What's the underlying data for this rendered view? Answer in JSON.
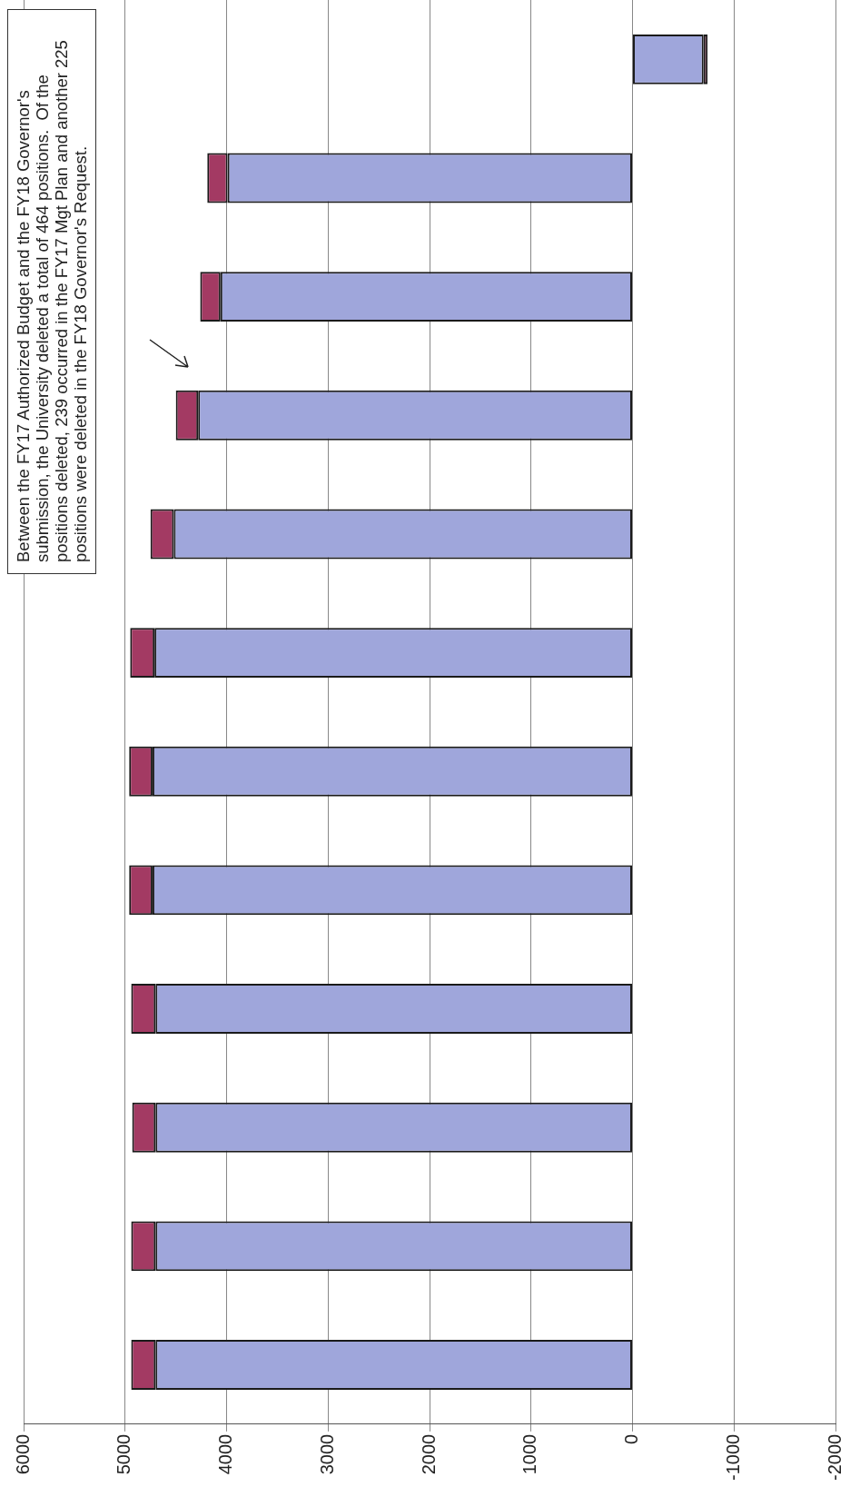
{
  "chart_data": {
    "type": "bar",
    "orientation": "horizontal",
    "stacked": true,
    "categories": [
      null,
      null,
      null,
      null,
      null,
      null,
      null,
      null,
      null,
      null,
      null,
      null
    ],
    "series": [
      {
        "color": "#9fa6db",
        "values": [
          -700,
          3990,
          4060,
          4280,
          4520,
          4710,
          4730,
          4730,
          4700,
          4700,
          4700,
          4700
        ]
      },
      {
        "color": "#a33a63",
        "values": [
          -40,
          200,
          200,
          220,
          230,
          240,
          230,
          230,
          240,
          230,
          240,
          240
        ]
      }
    ],
    "xlim": [
      6000,
      -2000
    ],
    "xticks": [
      6000,
      5000,
      4000,
      3000,
      2000,
      1000,
      0,
      -1000,
      -2000
    ],
    "grid": "x",
    "legend": false,
    "tick_labels": "x",
    "annotations": [
      "Between the FY17 Authorized Budget and the FY18 Governor's submission, the University deleted a total of 464 positions.  Of the positions deleted, 239 occurred in the FY17 Mgt Plan and another 225 positions were deleted in the FY18 Governor's Request."
    ]
  }
}
